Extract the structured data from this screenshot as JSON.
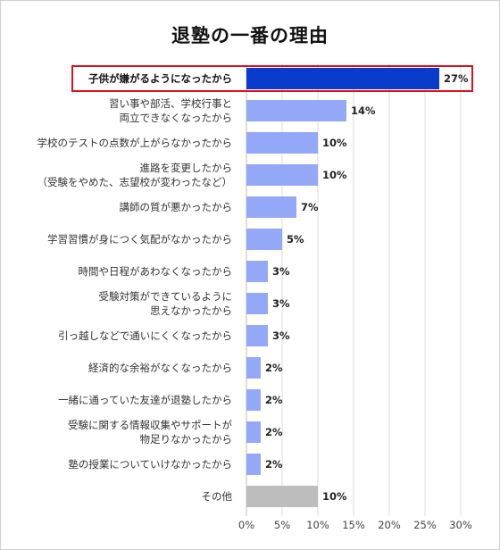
{
  "title": "退塾の一番の理由",
  "chart_data": {
    "type": "bar",
    "orientation": "horizontal",
    "title": "退塾の一番の理由",
    "xlim": [
      0,
      30
    ],
    "xticks": [
      "0%",
      "5%",
      "10%",
      "15%",
      "20%",
      "25%",
      "30%"
    ],
    "grid": true,
    "highlight_index": 0,
    "colors": {
      "highlight": "#0a3ccc",
      "default": "#94a8f8",
      "other": "#bdbdbd",
      "highlight_border": "#e0101c"
    },
    "categories": [
      [
        "子供が嫌がるようになったから"
      ],
      [
        "習い事や部活、学校行事と",
        "両立できなくなったから"
      ],
      [
        "学校のテストの点数が上がらなかったから"
      ],
      [
        "進路を変更したから",
        "（受験をやめた、志望校が変わったなど）"
      ],
      [
        "講師の質が悪かったから"
      ],
      [
        "学習習慣が身につく気配がなかったから"
      ],
      [
        "時間や日程があわなくなったから"
      ],
      [
        "受験対策ができているように",
        "思えなかったから"
      ],
      [
        "引っ越しなどで通いにくくなったから"
      ],
      [
        "経済的な余裕がなくなったから"
      ],
      [
        "一緒に通っていた友達が退塾したから"
      ],
      [
        "受験に関する情報収集やサポートが",
        "物足りなかったから"
      ],
      [
        "塾の授業についていけなかったから"
      ],
      [
        "その他"
      ]
    ],
    "values": [
      27,
      14,
      10,
      10,
      7,
      5,
      3,
      3,
      3,
      2,
      2,
      2,
      2,
      10
    ],
    "value_labels": [
      "27%",
      "14%",
      "10%",
      "10%",
      "7%",
      "5%",
      "3%",
      "3%",
      "3%",
      "2%",
      "2%",
      "2%",
      "2%",
      "10%"
    ]
  }
}
